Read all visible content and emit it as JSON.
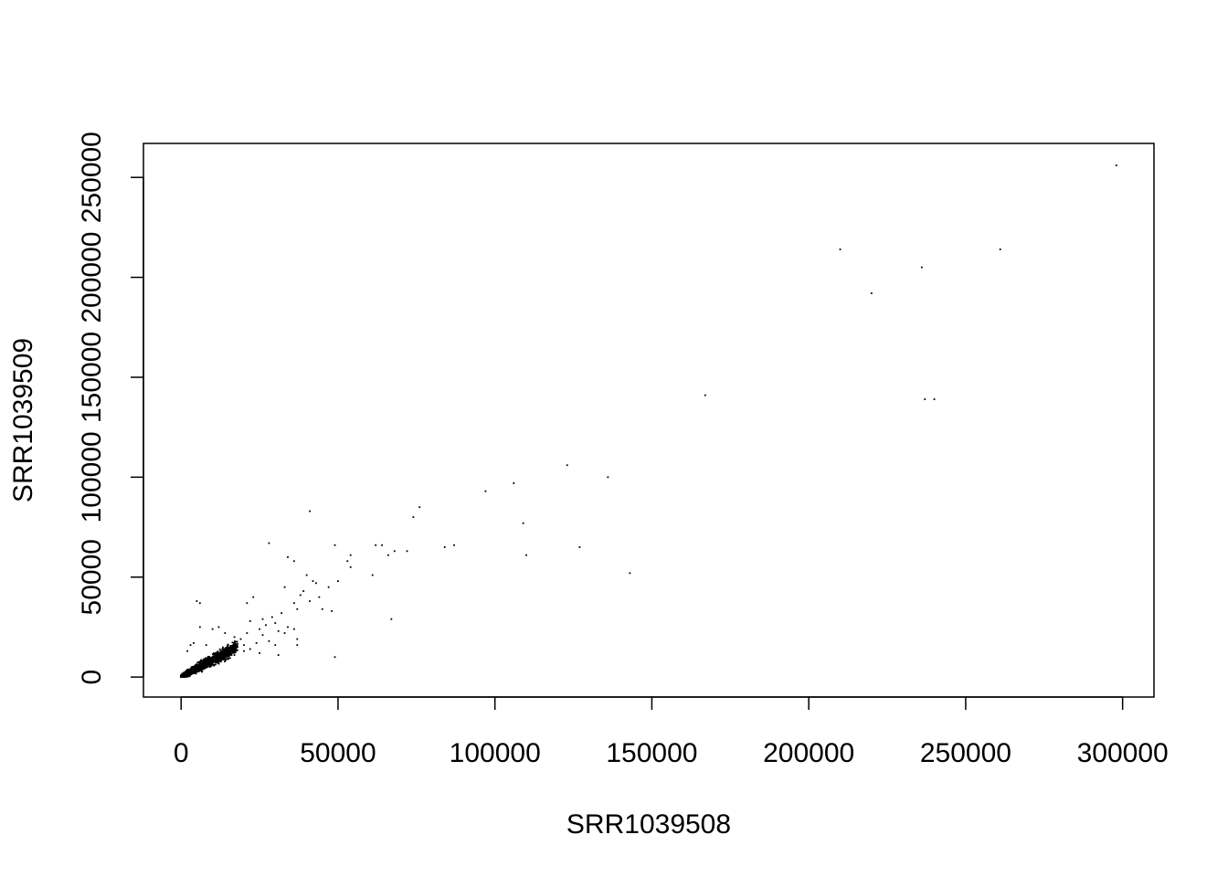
{
  "chart_data": {
    "type": "scatter",
    "xlabel": "SRR1039508",
    "ylabel": "SRR1039509",
    "xlim": [
      -12000,
      310000
    ],
    "ylim": [
      -10000,
      267000
    ],
    "xticks": [
      0,
      50000,
      100000,
      150000,
      200000,
      250000,
      300000
    ],
    "yticks": [
      0,
      50000,
      100000,
      150000,
      200000,
      250000
    ],
    "xtick_labels": [
      "0",
      "50000",
      "100000",
      "150000",
      "200000",
      "250000",
      "300000"
    ],
    "ytick_labels": [
      "0",
      "50000",
      "100000",
      "150000",
      "200000",
      "250000"
    ],
    "grid": false,
    "point_color": "#000000",
    "points": [
      [
        298000,
        256000
      ],
      [
        261000,
        214000
      ],
      [
        210000,
        214000
      ],
      [
        236000,
        205000
      ],
      [
        220000,
        192000
      ],
      [
        240000,
        139000
      ],
      [
        237000,
        139000
      ],
      [
        167000,
        141000
      ],
      [
        123000,
        106000
      ],
      [
        136000,
        100000
      ],
      [
        106000,
        97000
      ],
      [
        97000,
        93000
      ],
      [
        76000,
        85000
      ],
      [
        74000,
        80000
      ],
      [
        109000,
        77000
      ],
      [
        41000,
        83000
      ],
      [
        28000,
        67000
      ],
      [
        49000,
        66000
      ],
      [
        62000,
        66000
      ],
      [
        64000,
        66000
      ],
      [
        87000,
        66000
      ],
      [
        84000,
        65000
      ],
      [
        127000,
        65000
      ],
      [
        72000,
        63000
      ],
      [
        68000,
        63000
      ],
      [
        66000,
        61000
      ],
      [
        54000,
        61000
      ],
      [
        110000,
        61000
      ],
      [
        34000,
        60000
      ],
      [
        36000,
        58000
      ],
      [
        53000,
        58000
      ],
      [
        54000,
        55000
      ],
      [
        143000,
        52000
      ],
      [
        61000,
        51000
      ],
      [
        40000,
        51000
      ],
      [
        42000,
        48000
      ],
      [
        43000,
        47000
      ],
      [
        50000,
        48000
      ],
      [
        33000,
        45000
      ],
      [
        47000,
        45000
      ],
      [
        39000,
        43000
      ],
      [
        38000,
        41000
      ],
      [
        44000,
        40000
      ],
      [
        36000,
        37000
      ],
      [
        41000,
        38000
      ],
      [
        5000,
        38000
      ],
      [
        6000,
        37000
      ],
      [
        21000,
        37000
      ],
      [
        23000,
        40000
      ],
      [
        37000,
        34000
      ],
      [
        45000,
        34000
      ],
      [
        48000,
        33000
      ],
      [
        32000,
        32000
      ],
      [
        29000,
        30000
      ],
      [
        67000,
        29000
      ],
      [
        26000,
        29000
      ],
      [
        22000,
        28000
      ],
      [
        27000,
        26000
      ],
      [
        30000,
        27000
      ],
      [
        34000,
        25000
      ],
      [
        36000,
        24000
      ],
      [
        25000,
        24000
      ],
      [
        31000,
        23000
      ],
      [
        33000,
        22000
      ],
      [
        21000,
        22000
      ],
      [
        26000,
        21000
      ],
      [
        19000,
        19000
      ],
      [
        37000,
        19000
      ],
      [
        28000,
        18000
      ],
      [
        24000,
        17000
      ],
      [
        30000,
        16000
      ],
      [
        37000,
        16000
      ],
      [
        18000,
        15000
      ],
      [
        22000,
        14000
      ],
      [
        25000,
        12000
      ],
      [
        31000,
        11000
      ],
      [
        49000,
        10000
      ],
      [
        6000,
        25000
      ],
      [
        10000,
        24000
      ],
      [
        12000,
        25000
      ],
      [
        14000,
        22000
      ],
      [
        17000,
        20000
      ],
      [
        3000,
        16000
      ],
      [
        2000,
        13000
      ],
      [
        4000,
        17000
      ],
      [
        8000,
        16000
      ],
      [
        15000,
        16000
      ],
      [
        20000,
        16000
      ],
      [
        11000,
        12000
      ],
      [
        17000,
        11000
      ],
      [
        20000,
        13000
      ],
      [
        15000,
        9000
      ],
      [
        12000,
        8000
      ],
      [
        13000,
        11000
      ],
      [
        16000,
        14000
      ]
    ],
    "dense_cluster": {
      "count": 1400,
      "x_range": [
        0,
        18000
      ],
      "slope": 0.85,
      "spread": 2500
    }
  }
}
